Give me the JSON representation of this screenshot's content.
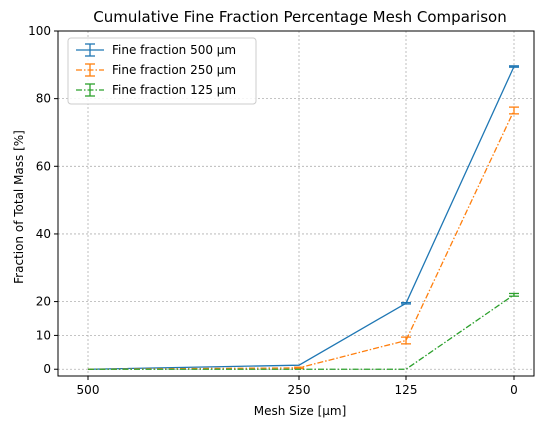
{
  "chart_data": {
    "type": "line",
    "title": "Cumulative Fine Fraction Percentage Mesh Comparison",
    "xlabel": "Mesh Size [µm]",
    "ylabel": "Fraction of Total Mass [%]",
    "x_ticks": [
      "500",
      "250",
      "125",
      "0"
    ],
    "y_ticks": [
      0,
      10,
      20,
      40,
      60,
      80,
      100
    ],
    "ylim": [
      -2,
      100
    ],
    "grid": true,
    "legend_position": "top-left",
    "series": [
      {
        "name": "Fine fraction 500 µm",
        "color": "#1f77b4",
        "style": "solid",
        "values": [
          0,
          1.2,
          19.5,
          89.5
        ],
        "errors": [
          0,
          0,
          0.2,
          0.2
        ]
      },
      {
        "name": "Fine fraction 250 µm",
        "color": "#ff7f0e",
        "style": "dashdot",
        "values": [
          0,
          0.4,
          8.5,
          76.5
        ],
        "errors": [
          0,
          0.2,
          1.0,
          1.0
        ]
      },
      {
        "name": "Fine fraction 125 µm",
        "color": "#2ca02c",
        "style": "dashdot",
        "values": [
          0,
          0,
          0,
          22
        ],
        "errors": [
          0,
          0,
          0,
          0.4
        ]
      }
    ]
  }
}
